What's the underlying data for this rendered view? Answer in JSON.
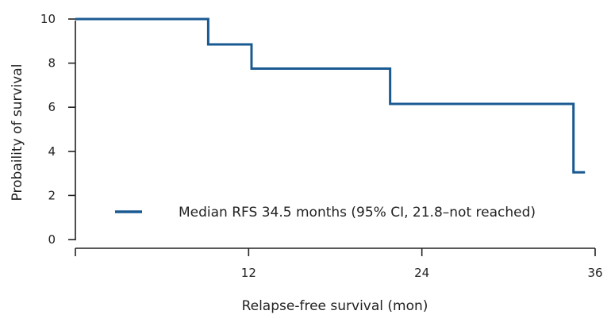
{
  "chart_data": {
    "type": "line",
    "subtype": "step",
    "title": "",
    "xlabel": "Relapse-free survival (mon)",
    "ylabel": "Probaility of survival",
    "xlim": [
      0,
      36
    ],
    "ylim": [
      0,
      10
    ],
    "x_ticks": [
      12,
      24,
      36
    ],
    "x_tick_labels": [
      "12",
      "24",
      "36"
    ],
    "y_ticks": [
      0,
      2,
      4,
      6,
      8,
      10
    ],
    "y_tick_labels": [
      "0",
      "2",
      "4",
      "6",
      "8",
      "10"
    ],
    "grid": false,
    "legend_position": "bottom-center",
    "series": [
      {
        "name": "Median RFS 34.5 months (95% CI, 21.8–not reached)",
        "color": "#1a5a92",
        "x": [
          0,
          9.2,
          9.2,
          12.2,
          12.2,
          21.8,
          21.8,
          34.5,
          34.5,
          35.3
        ],
        "y": [
          10,
          10,
          8.85,
          8.85,
          7.75,
          7.75,
          6.15,
          6.15,
          3.05,
          3.05
        ]
      }
    ]
  }
}
